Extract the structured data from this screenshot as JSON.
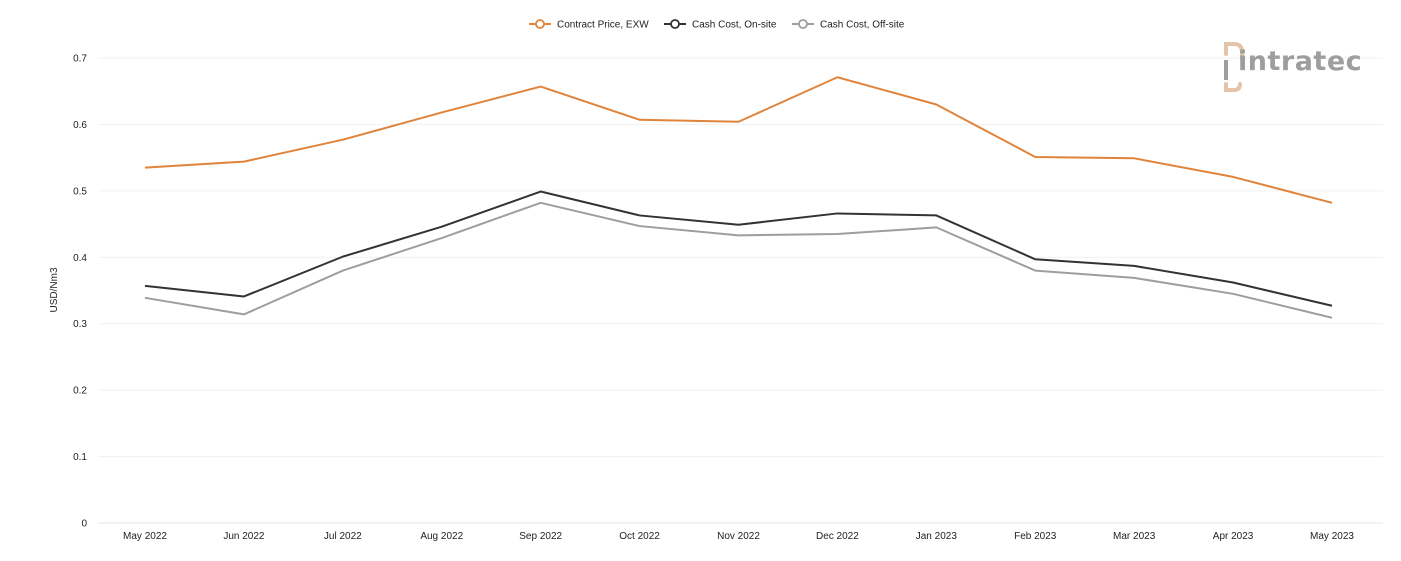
{
  "chart_data": {
    "type": "line",
    "categories": [
      "May 2022",
      "Jun 2022",
      "Jul 2022",
      "Aug 2022",
      "Sep 2022",
      "Oct 2022",
      "Nov 2022",
      "Dec 2022",
      "Jan 2023",
      "Feb 2023",
      "Mar 2023",
      "Apr 2023",
      "May 2023"
    ],
    "series": [
      {
        "name": "Contract Price, EXW",
        "color": "#e0843c",
        "values": [
          0.535,
          0.544,
          0.577,
          0.618,
          0.657,
          0.607,
          0.604,
          0.671,
          0.63,
          0.551,
          0.549,
          0.521,
          0.482
        ]
      },
      {
        "name": "Cash Cost, On-site",
        "color": "#333333",
        "values": [
          0.357,
          0.341,
          0.401,
          0.446,
          0.499,
          0.463,
          0.449,
          0.466,
          0.463,
          0.397,
          0.387,
          0.362,
          0.327
        ]
      },
      {
        "name": "Cash Cost, Off-site",
        "color": "#9e9e9e",
        "values": [
          0.339,
          0.314,
          0.38,
          0.429,
          0.482,
          0.447,
          0.433,
          0.435,
          0.445,
          0.38,
          0.369,
          0.345,
          0.309
        ]
      }
    ],
    "ylabel": "USD/Nm3",
    "ylim": [
      0,
      0.7
    ],
    "yticks": [
      "0",
      "0.1",
      "0.2",
      "0.3",
      "0.4",
      "0.5",
      "0.6",
      "0.7"
    ],
    "ytick_values": [
      0,
      0.1,
      0.2,
      0.3,
      0.4,
      0.5,
      0.6,
      0.7
    ],
    "grid": true,
    "legend_position": "top-center"
  },
  "logo": {
    "text": "intratec",
    "colors": {
      "mark": "#e3c4a8",
      "text": "#9e9e9e"
    }
  }
}
